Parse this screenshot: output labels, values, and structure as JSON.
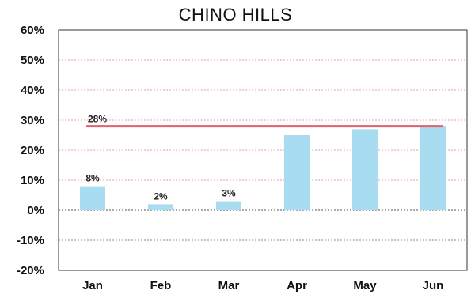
{
  "chart_data": {
    "type": "bar",
    "title": "CHINO HILLS",
    "categories": [
      "Jan",
      "Feb",
      "Mar",
      "Apr",
      "May",
      "Jun"
    ],
    "series": [
      {
        "values": [
          8,
          2,
          3,
          25,
          27,
          28
        ],
        "labels": [
          "8%",
          "2%",
          "3%",
          "",
          "",
          ""
        ],
        "color": "#a8dcf0"
      }
    ],
    "target_line": {
      "value": 28,
      "label": "28%",
      "color": "#e06070",
      "from_category": "Jan",
      "to_category": "Jun"
    },
    "ylim": [
      -20,
      60
    ],
    "yticks": [
      60,
      50,
      40,
      30,
      20,
      10,
      0,
      -10,
      -20
    ],
    "ytick_labels": [
      "60%",
      "50%",
      "40%",
      "30%",
      "20%",
      "10%",
      "0%",
      "-10%",
      "-20%"
    ],
    "grid": true,
    "grid_color_upper": "#e8a0a0",
    "grid_color_lower": "#888888",
    "xlabel": "",
    "ylabel": ""
  }
}
